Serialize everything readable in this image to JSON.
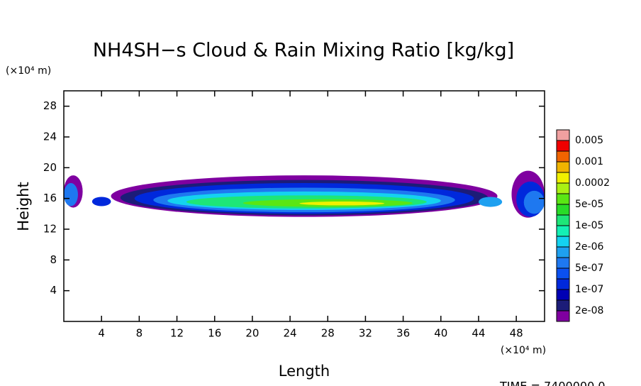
{
  "chart_data": {
    "type": "contour",
    "title": "NH4SH−s Cloud & Rain Mixing Ratio [kg/kg]",
    "x_label": "Length",
    "y_label": "Height",
    "x_unit": "(×10⁴ m)",
    "y_unit": "(×10⁴ m)",
    "footer": "TIME = 7400000.0",
    "xlim": [
      0,
      51
    ],
    "ylim": [
      0,
      30
    ],
    "xticks": [
      4,
      8,
      12,
      16,
      20,
      24,
      28,
      32,
      36,
      40,
      44,
      48
    ],
    "yticks": [
      4,
      8,
      12,
      16,
      20,
      24,
      28
    ],
    "colorbar": {
      "levels": [
        2e-08,
        5e-08,
        1e-07,
        2e-07,
        5e-07,
        1e-06,
        2e-06,
        5e-06,
        1e-05,
        2e-05,
        5e-05,
        0.0001,
        0.0002,
        0.0005,
        0.001,
        0.002,
        0.005
      ],
      "colors": [
        "#7f00a0",
        "#1c1c78",
        "#0000b4",
        "#0028dc",
        "#0a50f0",
        "#1e78f0",
        "#1ea0f0",
        "#14d2f0",
        "#14f0b4",
        "#1ee678",
        "#28dc28",
        "#5ae614",
        "#aaf014",
        "#f0f000",
        "#f0b400",
        "#f06400",
        "#f00000",
        "#f0a0a0"
      ],
      "ticks": [
        {
          "value": 2e-08,
          "label": "2e-08"
        },
        {
          "value": 1e-07,
          "label": "1e-07"
        },
        {
          "value": 5e-07,
          "label": "5e-07"
        },
        {
          "value": 2e-06,
          "label": "2e-06"
        },
        {
          "value": 1e-05,
          "label": "1e-05"
        },
        {
          "value": 5e-05,
          "label": "5e-05"
        },
        {
          "value": 0.0002,
          "label": "0.0002"
        },
        {
          "value": 0.001,
          "label": "0.001"
        },
        {
          "value": 0.005,
          "label": "0.005"
        }
      ]
    },
    "regions": [
      {
        "level": 1e-08,
        "x": [
          5,
          46
        ],
        "y": [
          13.6,
          19
        ]
      },
      {
        "level": 2e-08,
        "x": [
          6,
          45
        ],
        "y": [
          13.8,
          18.4
        ]
      },
      {
        "level": 1e-07,
        "x": [
          7.5,
          43.5
        ],
        "y": [
          14,
          18
        ]
      },
      {
        "level": 5e-07,
        "x": [
          9.5,
          41.5
        ],
        "y": [
          14.2,
          17.4
        ]
      },
      {
        "level": 2e-06,
        "x": [
          11,
          40
        ],
        "y": [
          14.5,
          16.9
        ]
      },
      {
        "level": 1e-05,
        "x": [
          13,
          38.5
        ],
        "y": [
          14.7,
          16.4
        ]
      },
      {
        "level": 5e-05,
        "x": [
          19,
          37
        ],
        "y": [
          14.9,
          15.9
        ]
      },
      {
        "level": 0.0002,
        "x": [
          25,
          34
        ],
        "y": [
          15.1,
          15.6
        ]
      },
      {
        "level": 1e-08,
        "x": [
          0,
          2
        ],
        "y": [
          14.8,
          19
        ]
      },
      {
        "level": 5e-07,
        "x": [
          0,
          1.5
        ],
        "y": [
          15,
          18
        ]
      },
      {
        "level": 1e-07,
        "x": [
          3,
          5
        ],
        "y": [
          15,
          16.2
        ]
      },
      {
        "level": 1e-06,
        "x": [
          44,
          46.5
        ],
        "y": [
          14.9,
          16.2
        ]
      },
      {
        "level": 1e-08,
        "x": [
          47.5,
          51
        ],
        "y": [
          13.5,
          19.6
        ]
      },
      {
        "level": 1e-07,
        "x": [
          48,
          51
        ],
        "y": [
          13.6,
          18.2
        ]
      },
      {
        "level": 5e-07,
        "x": [
          48.8,
          51
        ],
        "y": [
          14,
          17
        ]
      }
    ]
  }
}
